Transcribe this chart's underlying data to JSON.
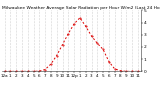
{
  "title": "Milwaukee Weather Average Solar Radiation per Hour W/m2 (Last 24 Hours)",
  "x_labels": [
    "12a",
    "1",
    "2",
    "3",
    "4",
    "5",
    "6",
    "7",
    "8",
    "9",
    "10",
    "11",
    "12p",
    "1",
    "2",
    "3",
    "4",
    "5",
    "6",
    "7",
    "8",
    "9",
    "10",
    "11"
  ],
  "hours": [
    0,
    1,
    2,
    3,
    4,
    5,
    6,
    7,
    8,
    9,
    10,
    11,
    12,
    13,
    14,
    15,
    16,
    17,
    18,
    19,
    20,
    21,
    22,
    23
  ],
  "values": [
    0,
    0,
    0,
    0,
    0,
    0,
    2,
    15,
    60,
    130,
    220,
    310,
    390,
    440,
    370,
    290,
    230,
    180,
    80,
    20,
    5,
    0,
    0,
    0
  ],
  "line_color": "#dd0000",
  "bg_color": "#ffffff",
  "plot_bg": "#ffffff",
  "grid_color": "#888888",
  "ylim": [
    0,
    500
  ],
  "ytick_vals": [
    0,
    100,
    200,
    300,
    400,
    500
  ],
  "ytick_labels": [
    "0",
    "1",
    "2",
    "3",
    "4",
    "5"
  ],
  "ylabel_fontsize": 3.2,
  "xlabel_fontsize": 3.0,
  "title_fontsize": 3.2,
  "line_width": 0.7,
  "dash_on": 2,
  "dash_off": 2
}
